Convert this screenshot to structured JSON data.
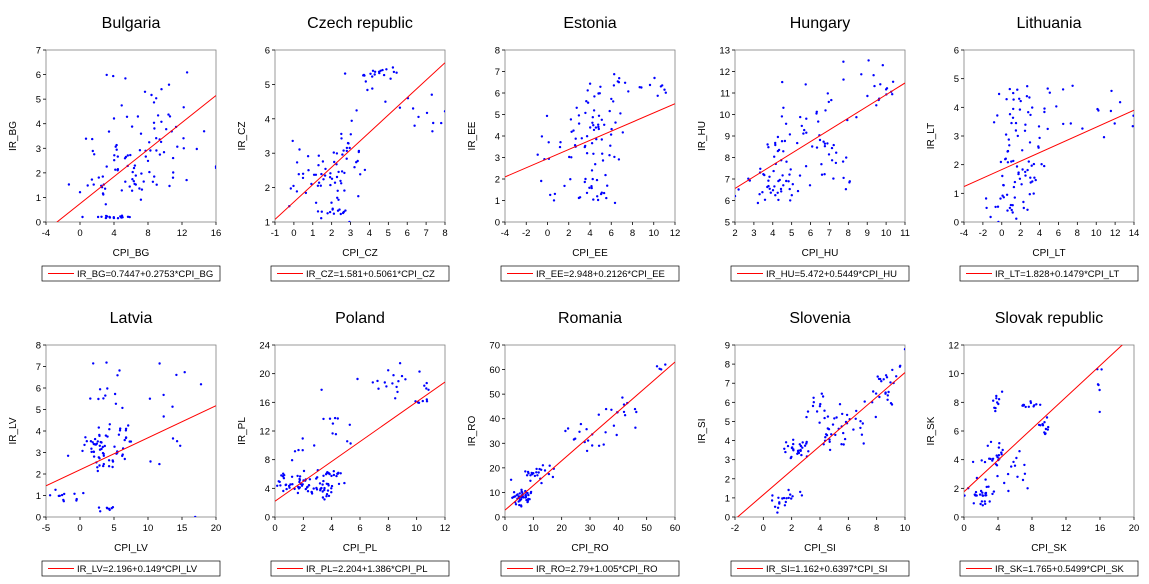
{
  "chart_data": [
    {
      "type": "scatter",
      "title": "Bulgaria",
      "xlabel": "CPI_BG",
      "ylabel": "IR_BG",
      "xlim": [
        -4,
        16
      ],
      "ylim": [
        0,
        7
      ],
      "xticks": [
        -4,
        0,
        4,
        8,
        12,
        16
      ],
      "yticks": [
        0,
        1,
        2,
        3,
        4,
        5,
        6,
        7
      ],
      "fit": {
        "intercept": 0.7447,
        "slope": 0.2753
      },
      "legend": "IR_BG=0.7447+0.2753*CPI_BG",
      "seed": 11,
      "clusters": [
        {
          "cx": 5,
          "cy": 2.1,
          "sx": 2.5,
          "sy": 0.8,
          "n": 55
        },
        {
          "cx": 4,
          "cy": 0.2,
          "sx": 1.5,
          "sy": 0.03,
          "n": 18
        },
        {
          "cx": 11,
          "cy": 3.5,
          "sx": 2.5,
          "sy": 1.3,
          "n": 30
        },
        {
          "cx": 6,
          "cy": 4.0,
          "sx": 2,
          "sy": 1.3,
          "n": 20
        }
      ]
    },
    {
      "type": "scatter",
      "title": "Czech republic",
      "xlabel": "CPI_CZ",
      "ylabel": "IR_CZ",
      "xlim": [
        -1,
        8
      ],
      "ylim": [
        1,
        6
      ],
      "xticks": [
        -1,
        0,
        1,
        2,
        3,
        4,
        5,
        6,
        7,
        8
      ],
      "yticks": [
        1,
        2,
        3,
        4,
        5,
        6
      ],
      "fit": {
        "intercept": 1.581,
        "slope": 0.5061
      },
      "legend": "IR_CZ=1.581+0.5061*CPI_CZ",
      "seed": 22,
      "clusters": [
        {
          "cx": 1.5,
          "cy": 2.3,
          "sx": 0.9,
          "sy": 0.5,
          "n": 55
        },
        {
          "cx": 4.2,
          "cy": 5.35,
          "sx": 0.5,
          "sy": 0.1,
          "n": 20
        },
        {
          "cx": 2.2,
          "cy": 1.25,
          "sx": 0.5,
          "sy": 0.05,
          "n": 10
        },
        {
          "cx": 6.5,
          "cy": 4.0,
          "sx": 0.8,
          "sy": 0.3,
          "n": 12
        },
        {
          "cx": 3.5,
          "cy": 3.4,
          "sx": 0.8,
          "sy": 0.6,
          "n": 20
        }
      ]
    },
    {
      "type": "scatter",
      "title": "Estonia",
      "xlabel": "CPI_EE",
      "ylabel": "IR_EE",
      "xlim": [
        -4,
        12
      ],
      "ylim": [
        0,
        8
      ],
      "xticks": [
        -4,
        -2,
        0,
        2,
        4,
        6,
        8,
        10,
        12
      ],
      "yticks": [
        0,
        1,
        2,
        3,
        4,
        5,
        6,
        7,
        8
      ],
      "fit": {
        "intercept": 2.948,
        "slope": 0.2126
      },
      "legend": "IR_EE=2.948+0.2126*CPI_EE",
      "seed": 33,
      "clusters": [
        {
          "cx": 4.5,
          "cy": 3.8,
          "sx": 1.2,
          "sy": 0.8,
          "n": 45
        },
        {
          "cx": 4.5,
          "cy": 1.4,
          "sx": 0.8,
          "sy": 0.3,
          "n": 20
        },
        {
          "cx": 5,
          "cy": 6.0,
          "sx": 1.2,
          "sy": 0.5,
          "n": 18
        },
        {
          "cx": 10,
          "cy": 6.6,
          "sx": 1,
          "sy": 0.5,
          "n": 10
        },
        {
          "cx": 0,
          "cy": 3.0,
          "sx": 1.5,
          "sy": 1,
          "n": 15
        }
      ]
    },
    {
      "type": "scatter",
      "title": "Hungary",
      "xlabel": "CPI_HU",
      "ylabel": "IR_HU",
      "xlim": [
        2,
        11
      ],
      "ylim": [
        5,
        13
      ],
      "xticks": [
        2,
        3,
        4,
        5,
        6,
        7,
        8,
        9,
        10,
        11
      ],
      "yticks": [
        5,
        6,
        7,
        8,
        9,
        10,
        11,
        12,
        13
      ],
      "fit": {
        "intercept": 5.472,
        "slope": 0.5449
      },
      "legend": "IR_HU=5.472+0.5449*CPI_HU",
      "seed": 44,
      "clusters": [
        {
          "cx": 4,
          "cy": 6.6,
          "sx": 0.8,
          "sy": 0.6,
          "n": 40
        },
        {
          "cx": 5,
          "cy": 9.0,
          "sx": 1,
          "sy": 0.9,
          "n": 35
        },
        {
          "cx": 7,
          "cy": 8.0,
          "sx": 0.8,
          "sy": 1,
          "n": 20
        },
        {
          "cx": 10,
          "cy": 11.3,
          "sx": 0.5,
          "sy": 0.5,
          "n": 15
        },
        {
          "cx": 7.5,
          "cy": 11.5,
          "sx": 1,
          "sy": 0.8,
          "n": 10
        }
      ]
    },
    {
      "type": "scatter",
      "title": "Lithuania",
      "xlabel": "CPI_LT",
      "ylabel": "IR_LT",
      "xlim": [
        -4,
        14
      ],
      "ylim": [
        0,
        6
      ],
      "xticks": [
        -4,
        -2,
        0,
        2,
        4,
        6,
        8,
        10,
        12,
        14
      ],
      "yticks": [
        0,
        1,
        2,
        3,
        4,
        5,
        6
      ],
      "fit": {
        "intercept": 1.828,
        "slope": 0.1479
      },
      "legend": "IR_LT=1.828+0.1479*CPI_LT",
      "seed": 55,
      "clusters": [
        {
          "cx": 2,
          "cy": 2.0,
          "sx": 1.2,
          "sy": 0.8,
          "n": 50
        },
        {
          "cx": 0,
          "cy": 0.5,
          "sx": 1.5,
          "sy": 0.3,
          "n": 20
        },
        {
          "cx": 1,
          "cy": 4.0,
          "sx": 1.5,
          "sy": 0.7,
          "n": 15
        },
        {
          "cx": 5,
          "cy": 3.8,
          "sx": 1.5,
          "sy": 0.6,
          "n": 15
        },
        {
          "cx": 11,
          "cy": 4.0,
          "sx": 1.2,
          "sy": 0.5,
          "n": 10
        }
      ]
    },
    {
      "type": "scatter",
      "title": "Latvia",
      "xlabel": "CPI_LV",
      "ylabel": "IR_LV",
      "xlim": [
        -5,
        20
      ],
      "ylim": [
        0,
        8
      ],
      "xticks": [
        -5,
        0,
        5,
        10,
        15,
        20
      ],
      "yticks": [
        0,
        1,
        2,
        3,
        4,
        5,
        6,
        7,
        8
      ],
      "fit": {
        "intercept": 2.196,
        "slope": 0.149
      },
      "legend": "IR_LV=2.196+0.149*CPI_LV",
      "seed": 66,
      "clusters": [
        {
          "cx": 3,
          "cy": 3.0,
          "sx": 1.5,
          "sy": 0.5,
          "n": 50
        },
        {
          "cx": -2,
          "cy": 0.9,
          "sx": 1.5,
          "sy": 0.2,
          "n": 12
        },
        {
          "cx": 4,
          "cy": 0.35,
          "sx": 0.5,
          "sy": 0.05,
          "n": 8
        },
        {
          "cx": 4,
          "cy": 5.5,
          "sx": 1.5,
          "sy": 1.2,
          "n": 18
        },
        {
          "cx": 14,
          "cy": 4.5,
          "sx": 2.5,
          "sy": 1.5,
          "n": 14
        },
        {
          "cx": 6.5,
          "cy": 3.5,
          "sx": 1,
          "sy": 0.5,
          "n": 12
        }
      ]
    },
    {
      "type": "scatter",
      "title": "Poland",
      "xlabel": "CPI_PL",
      "ylabel": "IR_PL",
      "xlim": [
        0,
        12
      ],
      "ylim": [
        0,
        24
      ],
      "xticks": [
        0,
        2,
        4,
        6,
        8,
        10,
        12
      ],
      "yticks": [
        0,
        4,
        8,
        12,
        16,
        20,
        24
      ],
      "fit": {
        "intercept": 2.204,
        "slope": 1.386
      },
      "legend": "IR_PL=2.204+1.386*CPI_PL",
      "seed": 77,
      "clusters": [
        {
          "cx": 1.5,
          "cy": 4.8,
          "sx": 0.9,
          "sy": 0.8,
          "n": 45
        },
        {
          "cx": 3.5,
          "cy": 3.8,
          "sx": 0.8,
          "sy": 0.7,
          "n": 30
        },
        {
          "cx": 4,
          "cy": 6.0,
          "sx": 0.5,
          "sy": 0.4,
          "n": 15
        },
        {
          "cx": 7.5,
          "cy": 18.5,
          "sx": 1.2,
          "sy": 1.2,
          "n": 18
        },
        {
          "cx": 10.5,
          "cy": 17.0,
          "sx": 0.4,
          "sy": 0.8,
          "n": 10
        },
        {
          "cx": 4.5,
          "cy": 13.0,
          "sx": 0.9,
          "sy": 1.5,
          "n": 10
        },
        {
          "cx": 1.5,
          "cy": 9,
          "sx": 0.8,
          "sy": 1,
          "n": 6
        }
      ]
    },
    {
      "type": "scatter",
      "title": "Romania",
      "xlabel": "CPI_RO",
      "ylabel": "IR_RO",
      "xlim": [
        0,
        60
      ],
      "ylim": [
        0,
        70
      ],
      "xticks": [
        0,
        10,
        20,
        30,
        40,
        50,
        60
      ],
      "yticks": [
        0,
        10,
        20,
        30,
        40,
        50,
        60,
        70
      ],
      "fit": {
        "intercept": 2.79,
        "slope": 1.005
      },
      "legend": "IR_RO=2.79+1.005*CPI_RO",
      "seed": 88,
      "clusters": [
        {
          "cx": 6,
          "cy": 8,
          "sx": 1.5,
          "sy": 1.5,
          "n": 50
        },
        {
          "cx": 12,
          "cy": 18,
          "sx": 3,
          "sy": 2,
          "n": 25
        },
        {
          "cx": 28,
          "cy": 32,
          "sx": 4,
          "sy": 3,
          "n": 15
        },
        {
          "cx": 42,
          "cy": 43,
          "sx": 3.5,
          "sy": 4,
          "n": 15
        },
        {
          "cx": 55,
          "cy": 60,
          "sx": 1,
          "sy": 1.5,
          "n": 4
        }
      ]
    },
    {
      "type": "scatter",
      "title": "Slovenia",
      "xlabel": "CPI_SI",
      "ylabel": "IR_SI",
      "xlim": [
        -2,
        10
      ],
      "ylim": [
        0,
        9
      ],
      "xticks": [
        -2,
        0,
        2,
        4,
        6,
        8,
        10
      ],
      "yticks": [
        0,
        1,
        2,
        3,
        4,
        5,
        6,
        7,
        8,
        9
      ],
      "fit": {
        "intercept": 1.162,
        "slope": 0.6397
      },
      "legend": "IR_SI=1.162+0.6397*CPI_SI",
      "seed": 99,
      "clusters": [
        {
          "cx": 2.5,
          "cy": 3.6,
          "sx": 0.6,
          "sy": 0.3,
          "n": 30
        },
        {
          "cx": 1.5,
          "cy": 0.8,
          "sx": 0.5,
          "sy": 0.3,
          "n": 20
        },
        {
          "cx": 5.5,
          "cy": 4.6,
          "sx": 1,
          "sy": 0.5,
          "n": 35
        },
        {
          "cx": 8.8,
          "cy": 7.0,
          "sx": 0.6,
          "sy": 0.7,
          "n": 25
        },
        {
          "cx": 4.5,
          "cy": 5.8,
          "sx": 0.8,
          "sy": 0.5,
          "n": 15
        }
      ]
    },
    {
      "type": "scatter",
      "title": "Slovak republic",
      "xlabel": "CPI_SK",
      "ylabel": "IR_SK",
      "xlim": [
        0,
        20
      ],
      "ylim": [
        0,
        12
      ],
      "xticks": [
        0,
        4,
        8,
        12,
        16,
        20
      ],
      "yticks": [
        0,
        2,
        4,
        6,
        8,
        10,
        12
      ],
      "fit": {
        "intercept": 1.765,
        "slope": 0.5499
      },
      "legend": "IR_SK=1.765+0.5499*CPI_SK",
      "seed": 111,
      "clusters": [
        {
          "cx": 2,
          "cy": 1.5,
          "sx": 0.8,
          "sy": 0.6,
          "n": 30
        },
        {
          "cx": 3.5,
          "cy": 4.2,
          "sx": 1,
          "sy": 0.5,
          "n": 25
        },
        {
          "cx": 4,
          "cy": 8.0,
          "sx": 0.5,
          "sy": 0.3,
          "n": 10
        },
        {
          "cx": 8,
          "cy": 7.8,
          "sx": 1,
          "sy": 0.1,
          "n": 12
        },
        {
          "cx": 9.5,
          "cy": 6.0,
          "sx": 0.6,
          "sy": 0.4,
          "n": 12
        },
        {
          "cx": 16,
          "cy": 9,
          "sx": 0.5,
          "sy": 0.8,
          "n": 6
        },
        {
          "cx": 6,
          "cy": 3,
          "sx": 1,
          "sy": 0.7,
          "n": 10
        }
      ]
    }
  ],
  "colors": {
    "points": "#0000ff",
    "fit": "#ff0000",
    "axis": "#000000",
    "frame": "#808080"
  }
}
